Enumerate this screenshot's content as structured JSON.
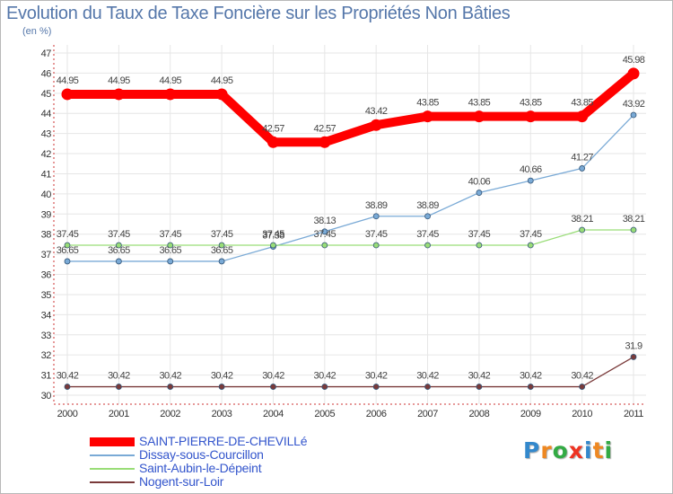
{
  "title": "Evolution du Taux de Taxe Foncière sur les Propriétés Non Bâties",
  "unit": "(en %)",
  "logo": {
    "letters": [
      "P",
      "r",
      "o",
      "x",
      "i",
      "t",
      "i"
    ],
    "colors": [
      "#3388cc",
      "#ee8822",
      "#33aa44",
      "#ee3322",
      "#3388cc",
      "#ee8822",
      "#33aa44"
    ]
  },
  "chart_data": {
    "type": "line",
    "title": "Evolution du Taux de Taxe Foncière sur les Propriétés Non Bâties",
    "ylabel": "(en %)",
    "xlabel": "",
    "ylim": [
      30,
      47
    ],
    "yticks": [
      "30",
      "31",
      "32",
      "33",
      "34",
      "35",
      "36",
      "37",
      "38",
      "39",
      "40",
      "41",
      "42",
      "43",
      "44",
      "45",
      "46",
      "47"
    ],
    "categories": [
      "2000",
      "2001",
      "2002",
      "2003",
      "2004",
      "2005",
      "2006",
      "2007",
      "2008",
      "2009",
      "2010",
      "2011"
    ],
    "grid": true,
    "legend_position": "bottom-left",
    "series": [
      {
        "name": "SAINT-PIERRE-DE-CHEVILLé",
        "color": "#ff0000",
        "emphasis": true,
        "values": [
          44.95,
          44.95,
          44.95,
          44.95,
          42.57,
          42.57,
          43.42,
          43.85,
          43.85,
          43.85,
          43.85,
          45.98
        ],
        "labels": [
          "44.95",
          "44.95",
          "44.95",
          "44.95",
          "42.57",
          "42.57",
          "43.42",
          "43.85",
          "43.85",
          "43.85",
          "43.85",
          "45.98"
        ]
      },
      {
        "name": "Dissay-sous-Courcillon",
        "color": "#7aaad6",
        "emphasis": false,
        "values": [
          36.65,
          36.65,
          36.65,
          36.65,
          37.38,
          38.13,
          38.89,
          38.89,
          40.06,
          40.66,
          41.27,
          43.92
        ],
        "labels": [
          "36.65",
          "36.65",
          "36.65",
          "36.65",
          "37.38",
          "38.13",
          "38.89",
          "38.89",
          "40.06",
          "40.66",
          "41.27",
          "43.92"
        ]
      },
      {
        "name": "Saint-Aubin-le-Dépeint",
        "color": "#99dd77",
        "emphasis": false,
        "values": [
          37.45,
          37.45,
          37.45,
          37.45,
          37.45,
          37.45,
          37.45,
          37.45,
          37.45,
          37.45,
          38.21,
          38.21
        ],
        "labels": [
          "37.45",
          "37.45",
          "37.45",
          "37.45",
          "37.45",
          "37.45",
          "37.45",
          "37.45",
          "37.45",
          "37.45",
          "38.21",
          "38.21"
        ]
      },
      {
        "name": "Nogent-sur-Loir",
        "color": "#7a3a3a",
        "emphasis": false,
        "values": [
          30.42,
          30.42,
          30.42,
          30.42,
          30.42,
          30.42,
          30.42,
          30.42,
          30.42,
          30.42,
          30.42,
          31.9
        ],
        "labels": [
          "30.42",
          "30.42",
          "30.42",
          "30.42",
          "30.42",
          "30.42",
          "30.42",
          "30.42",
          "30.42",
          "30.42",
          "30.42",
          "31.9"
        ]
      }
    ]
  }
}
